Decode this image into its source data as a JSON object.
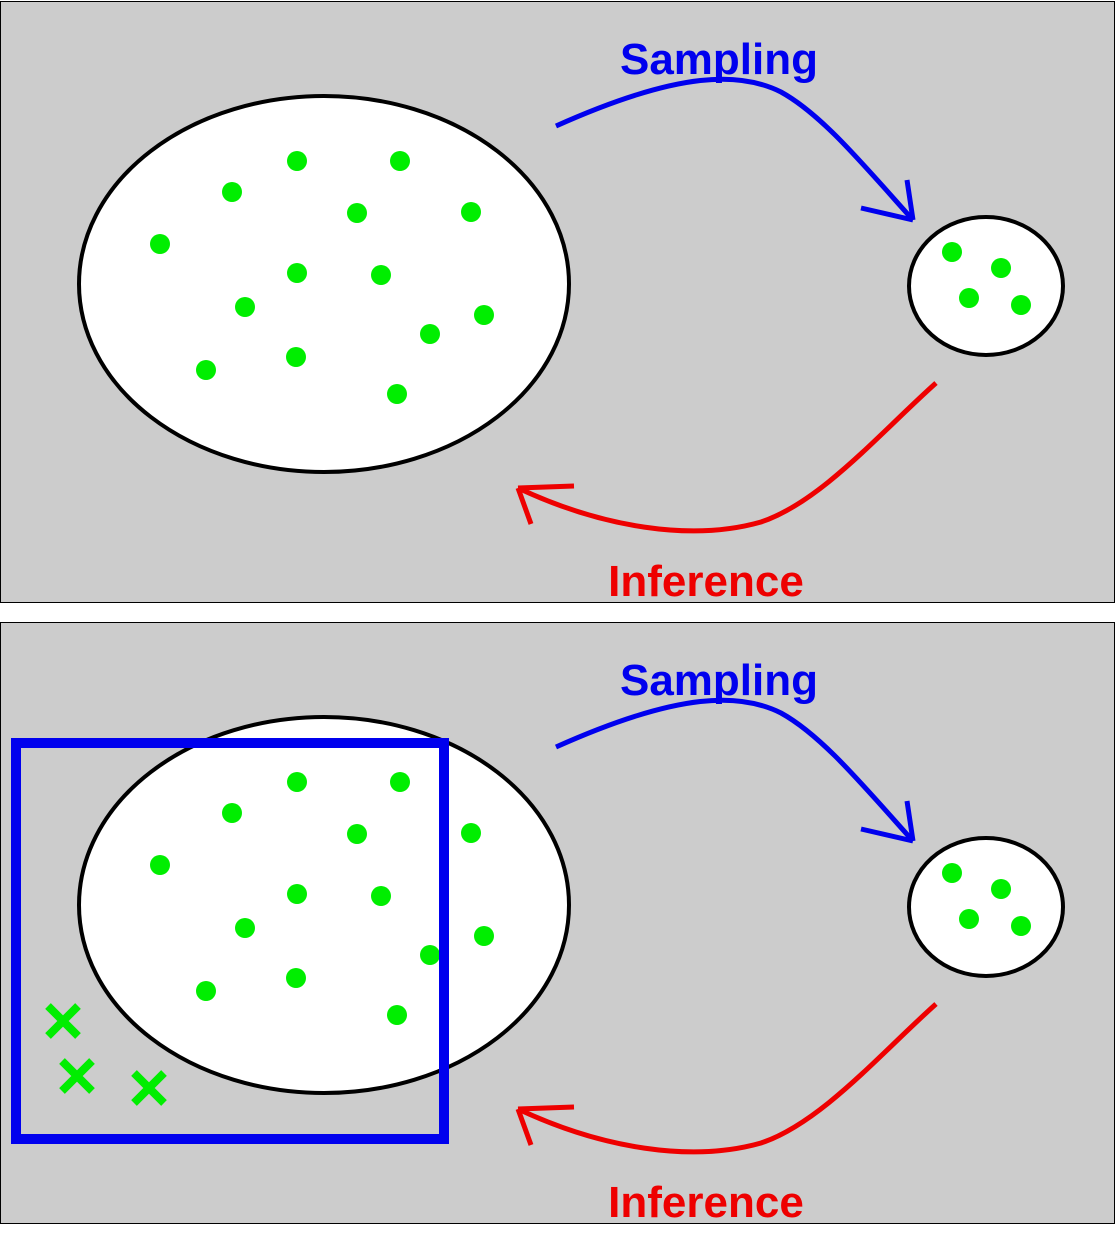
{
  "labels": {
    "sampling": "Sampling",
    "inference": "Inference"
  },
  "colors": {
    "background": "#cccccc",
    "population_fill": "#ffffff",
    "outline": "#000000",
    "dot": "#00ee00",
    "sampling_arrow": "#0000ee",
    "inference_arrow": "#ee0000",
    "frame_box": "#0000ee",
    "excluded_marker": "#00ee00"
  },
  "panels": [
    {
      "name": "panel-basic",
      "population_dots": 15,
      "sample_dots": 4,
      "sampling_frame": false,
      "excluded_markers": 0
    },
    {
      "name": "panel-sampling-frame",
      "population_dots": 15,
      "sample_dots": 4,
      "sampling_frame": true,
      "excluded_markers": 3
    }
  ]
}
